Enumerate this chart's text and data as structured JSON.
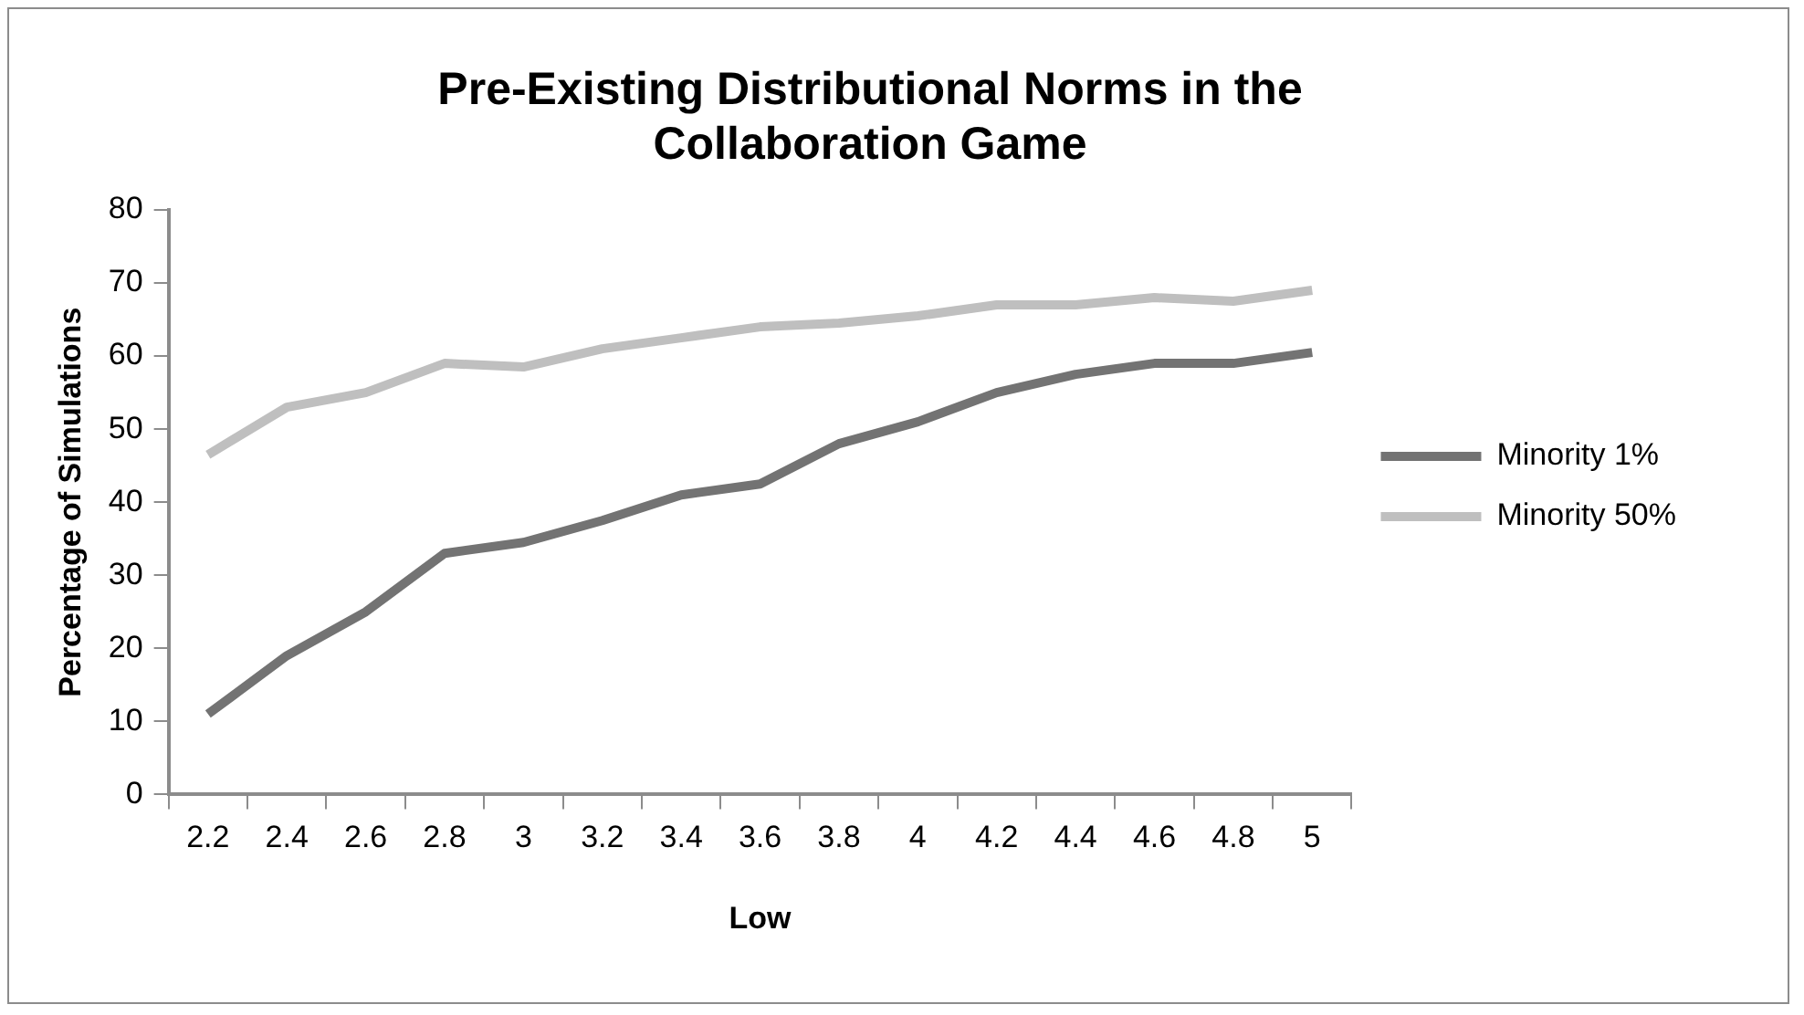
{
  "chart_data": {
    "type": "line",
    "title": "Pre-Existing Distributional Norms in the Collaboration Game",
    "xlabel": "Low",
    "ylabel": "Percentage of Simulations",
    "categories": [
      "2.2",
      "2.4",
      "2.6",
      "2.8",
      "3",
      "3.2",
      "3.4",
      "3.6",
      "3.8",
      "4",
      "4.2",
      "4.4",
      "4.6",
      "4.8",
      "5"
    ],
    "series": [
      {
        "name": "Minority 1%",
        "color": "#737373",
        "values": [
          11,
          19,
          25,
          33,
          34.5,
          37.5,
          41,
          42.5,
          48,
          51,
          55,
          57.5,
          59,
          59,
          60.5
        ]
      },
      {
        "name": "Minority 50%",
        "color": "#bfbfbf",
        "values": [
          46.5,
          53,
          55,
          59,
          58.5,
          61,
          62.5,
          64,
          64.5,
          65.5,
          67,
          67,
          68,
          67.5,
          69
        ]
      }
    ],
    "ylim": [
      0,
      80
    ],
    "yticks": [
      0,
      10,
      20,
      30,
      40,
      50,
      60,
      70,
      80
    ],
    "grid": false,
    "legend": "right",
    "marker": "none",
    "line_style": "solid"
  }
}
